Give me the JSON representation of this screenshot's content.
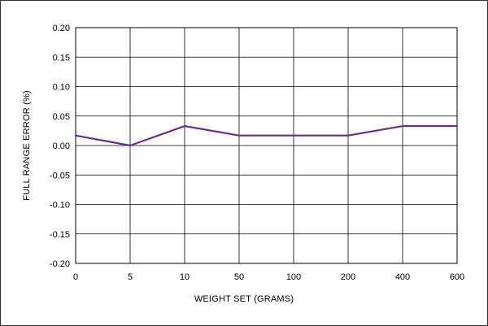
{
  "chart_data": {
    "type": "line",
    "title": "",
    "xlabel": "WEIGHT SET (GRAMS)",
    "ylabel": "FULL RANGE ERROR (%)",
    "categories": [
      "0",
      "5",
      "10",
      "50",
      "100",
      "200",
      "400",
      "600"
    ],
    "y_ticks": [
      "0.20",
      "0.15",
      "0.10",
      "0.05",
      "0.00",
      "-0.05",
      "-0.10",
      "-0.15",
      "-0.20"
    ],
    "ylim": [
      -0.2,
      0.2
    ],
    "grid": true,
    "series": [
      {
        "values": [
          0.017,
          0.0,
          0.033,
          0.017,
          0.017,
          0.017,
          0.033,
          0.033
        ]
      }
    ],
    "line_color": "#6a2c91",
    "grid_color": "#000000"
  }
}
